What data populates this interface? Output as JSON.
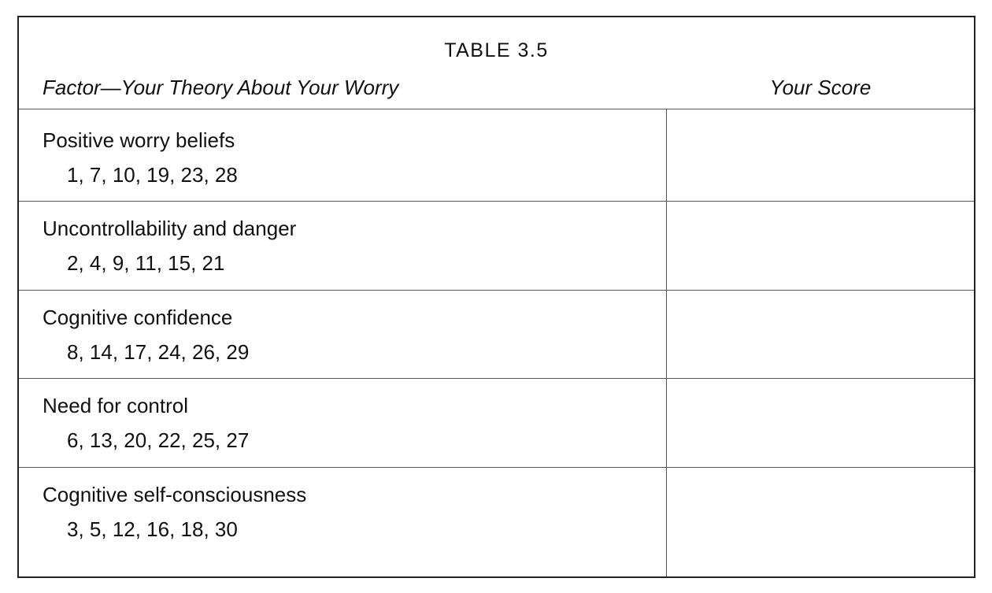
{
  "table": {
    "title": "TABLE 3.5",
    "col_factor": "Factor—Your Theory About Your Worry",
    "col_score": "Your Score",
    "rows": [
      {
        "factor": "Positive worry beliefs",
        "items": "1, 7, 10, 19, 23, 28",
        "score": ""
      },
      {
        "factor": "Uncontrollability and danger",
        "items": "2, 4, 9, 11, 15, 21",
        "score": ""
      },
      {
        "factor": "Cognitive confidence",
        "items": "8, 14, 17, 24, 26, 29",
        "score": ""
      },
      {
        "factor": "Need for control",
        "items": "6, 13, 20, 22, 25, 27",
        "score": ""
      },
      {
        "factor": "Cognitive self-consciousness",
        "items": "3, 5, 12, 16, 18, 30",
        "score": ""
      }
    ]
  }
}
